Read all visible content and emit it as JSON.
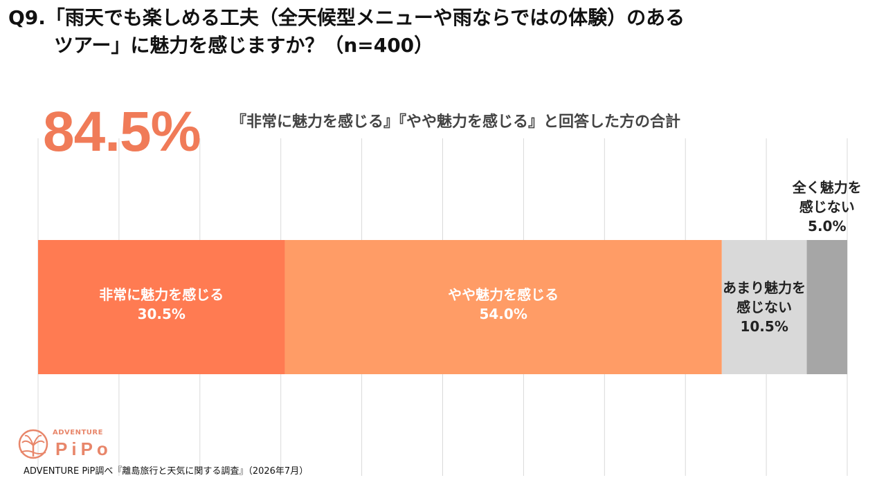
{
  "question": {
    "line1": "Q9.「雨天でも楽しめる工夫（全天候型メニューや雨ならではの体験）のある",
    "line2": "ツアー」に魅力を感じますか？（n=400）"
  },
  "highlight": {
    "value": "84.5%",
    "caption": "『非常に魅力を感じる』『やや魅力を感じる』と回答した方の合計",
    "color": "#F07B58"
  },
  "logo": {
    "top_text": "ADVENTURE",
    "main_text": "PiPo",
    "icon": "palm-tree-sun-logo-icon"
  },
  "source": "ADVENTURE PiP調べ『離島旅行と天気に関する調査』（2026年7月）",
  "chart_data": {
    "type": "bar",
    "orientation": "horizontal-stacked-100",
    "categories": [
      "Q9"
    ],
    "series": [
      {
        "name": "非常に魅力を感じる",
        "label_lines": [
          "非常に魅力を感じる"
        ],
        "value": 30.5,
        "display": "30.5%",
        "color": "#FF7B52",
        "label_position": "inside",
        "text_color": "#ffffff"
      },
      {
        "name": "やや魅力を感じる",
        "label_lines": [
          "やや魅力を感じる"
        ],
        "value": 54.0,
        "display": "54.0%",
        "color": "#FF9C66",
        "label_position": "inside",
        "text_color": "#ffffff"
      },
      {
        "name": "あまり魅力を感じない",
        "label_lines": [
          "あまり魅力を",
          "感じない"
        ],
        "value": 10.5,
        "display": "10.5%",
        "color": "#D9D9D9",
        "label_position": "inside",
        "text_color": "#222222"
      },
      {
        "name": "全く魅力を感じない",
        "label_lines": [
          "全く魅力を",
          "感じない"
        ],
        "value": 5.0,
        "display": "5.0%",
        "color": "#A6A6A6",
        "label_position": "above",
        "text_color": "#222222"
      }
    ],
    "xlim": [
      0,
      100
    ],
    "grid": true,
    "grid_color": "#D9D9D9",
    "legend": "none"
  }
}
